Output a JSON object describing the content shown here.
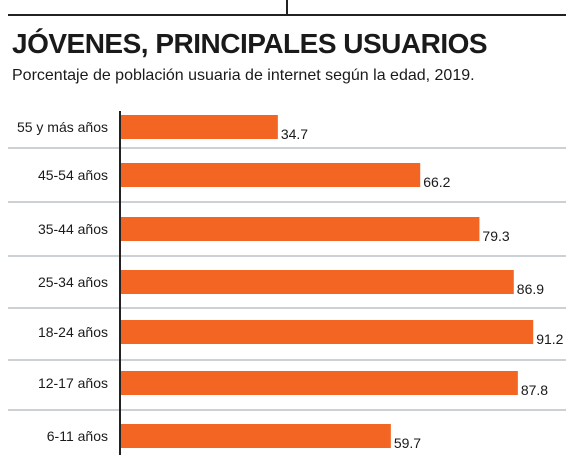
{
  "header": {
    "title": "JÓVENES, PRINCIPALES USUARIOS",
    "subtitle": "Porcentaje de población usuaria de internet según  la edad, 2019."
  },
  "colors": {
    "bar": "#f26522",
    "axis": "#222222",
    "separator": "#9aa3ad"
  },
  "chart_data": {
    "type": "bar",
    "orientation": "horizontal",
    "title": "JÓVENES, PRINCIPALES USUARIOS",
    "subtitle": "Porcentaje de población usuaria de internet según  la edad, 2019.",
    "categories": [
      "55 y más años",
      "45-54 años",
      "35-44 años",
      "25-34 años",
      "18-24 años",
      "12-17 años",
      "6-11 años"
    ],
    "values": [
      34.7,
      66.2,
      79.3,
      86.9,
      91.2,
      87.8,
      59.7
    ],
    "xlabel": "",
    "ylabel": "",
    "xlim": [
      0,
      100
    ],
    "grid": false,
    "data_labels": true
  }
}
